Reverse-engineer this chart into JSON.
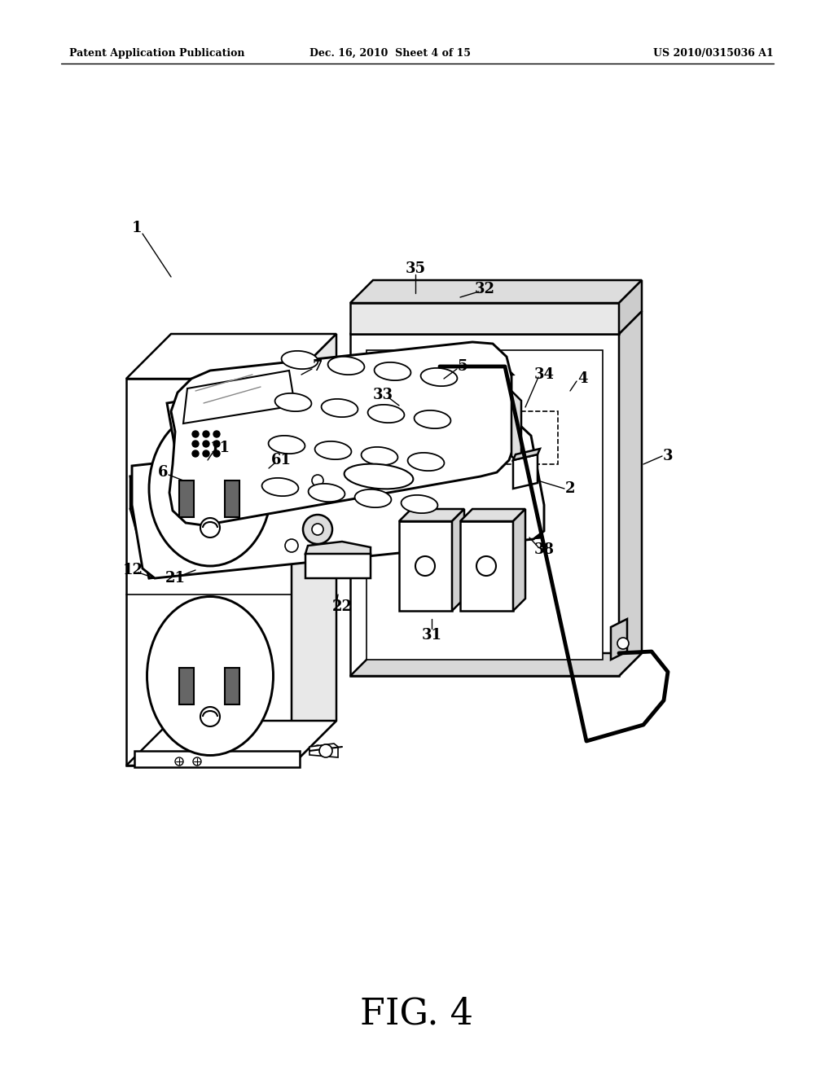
{
  "bg_color": "#ffffff",
  "line_color": "#000000",
  "header_left": "Patent Application Publication",
  "header_center": "Dec. 16, 2010  Sheet 4 of 15",
  "header_right": "US 2010/0315036 A1",
  "figure_label": "FIG. 4"
}
